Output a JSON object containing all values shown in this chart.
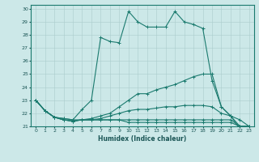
{
  "xlabel": "Humidex (Indice chaleur)",
  "bg_color": "#cce8e8",
  "grid_color": "#aacccc",
  "line_color": "#1a7a6e",
  "xlim": [
    -0.5,
    23.5
  ],
  "ylim": [
    21,
    30.3
  ],
  "yticks": [
    21,
    22,
    23,
    24,
    25,
    26,
    27,
    28,
    29,
    30
  ],
  "xticks": [
    0,
    1,
    2,
    3,
    4,
    5,
    6,
    7,
    8,
    9,
    10,
    11,
    12,
    13,
    14,
    15,
    16,
    17,
    18,
    19,
    20,
    21,
    22,
    23
  ],
  "lines": [
    [
      23.0,
      22.2,
      21.7,
      21.6,
      21.5,
      22.3,
      23.0,
      27.8,
      27.5,
      27.4,
      29.8,
      29.0,
      28.6,
      28.6,
      28.6,
      29.8,
      29.0,
      28.8,
      28.5,
      24.5,
      22.5,
      21.8,
      21.0,
      21.0
    ],
    [
      23.0,
      22.2,
      21.7,
      21.6,
      21.5,
      21.5,
      21.6,
      21.8,
      22.0,
      22.5,
      23.0,
      23.5,
      23.5,
      23.8,
      24.0,
      24.2,
      24.5,
      24.8,
      25.0,
      25.0,
      22.5,
      21.8,
      21.5,
      21.0
    ],
    [
      23.0,
      22.2,
      21.7,
      21.5,
      21.4,
      21.5,
      21.5,
      21.6,
      21.8,
      22.0,
      22.2,
      22.3,
      22.3,
      22.4,
      22.5,
      22.5,
      22.6,
      22.6,
      22.6,
      22.5,
      22.0,
      21.8,
      20.8,
      21.0
    ],
    [
      23.0,
      22.2,
      21.7,
      21.5,
      21.4,
      21.5,
      21.5,
      21.5,
      21.5,
      21.5,
      21.5,
      21.5,
      21.5,
      21.5,
      21.5,
      21.5,
      21.5,
      21.5,
      21.5,
      21.5,
      21.5,
      21.5,
      21.0,
      21.0
    ],
    [
      23.0,
      22.2,
      21.7,
      21.5,
      21.4,
      21.5,
      21.5,
      21.5,
      21.5,
      21.5,
      21.3,
      21.3,
      21.3,
      21.3,
      21.3,
      21.3,
      21.3,
      21.3,
      21.3,
      21.3,
      21.3,
      21.3,
      21.0,
      21.0
    ]
  ]
}
